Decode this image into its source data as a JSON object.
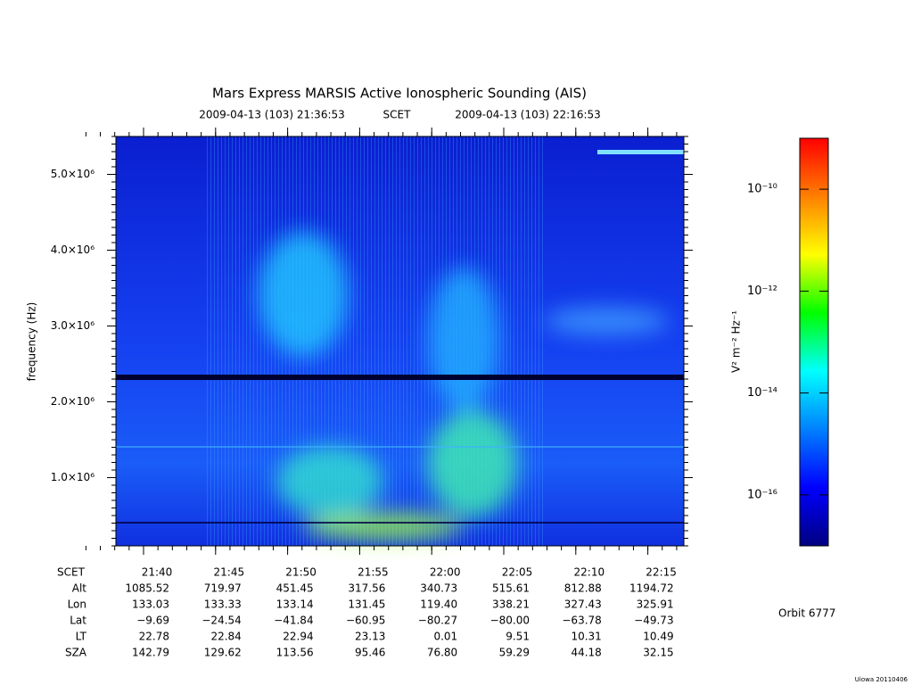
{
  "chart_data": {
    "type": "spectrogram",
    "title": "Mars Express MARSIS Active Ionospheric Sounding (AIS)",
    "subtitle": [
      "2009-04-13 (103) 21:36:53",
      "SCET",
      "2009-04-13 (103) 22:16:53"
    ],
    "ylabel": "frequency (Hz)",
    "ylim": [
      100000,
      5500000
    ],
    "yticks": [
      {
        "value": 1000000,
        "label": "1.0×10⁶"
      },
      {
        "value": 2000000,
        "label": "2.0×10⁶"
      },
      {
        "value": 3000000,
        "label": "3.0×10⁶"
      },
      {
        "value": 4000000,
        "label": "4.0×10⁶"
      },
      {
        "value": 5000000,
        "label": "5.0×10⁶"
      }
    ],
    "row_label": "SCET",
    "categories": [
      "21:40",
      "21:45",
      "21:50",
      "21:55",
      "22:00",
      "22:05",
      "22:10",
      "22:15"
    ],
    "ephemeris": [
      {
        "name": "Alt",
        "values": [
          1085.52,
          719.97,
          451.45,
          317.56,
          340.73,
          515.61,
          812.88,
          1194.72
        ],
        "value_labels": [
          "1085.52",
          "719.97",
          "451.45",
          "317.56",
          "340.73",
          "515.61",
          "812.88",
          "1194.72"
        ]
      },
      {
        "name": "Lon",
        "values": [
          133.03,
          133.33,
          133.14,
          131.45,
          119.4,
          338.21,
          327.43,
          325.91
        ],
        "value_labels": [
          "133.03",
          "133.33",
          "133.14",
          "131.45",
          "119.40",
          "338.21",
          "327.43",
          "325.91"
        ]
      },
      {
        "name": "Lat",
        "values": [
          -9.69,
          -24.54,
          -41.84,
          -60.95,
          -80.27,
          -80.0,
          -63.78,
          -49.73
        ],
        "value_labels": [
          "−9.69",
          "−24.54",
          "−41.84",
          "−60.95",
          "−80.27",
          "−80.00",
          "−63.78",
          "−49.73"
        ]
      },
      {
        "name": "LT",
        "values": [
          22.78,
          22.84,
          22.94,
          23.13,
          0.01,
          9.51,
          10.31,
          10.49
        ],
        "value_labels": [
          "22.78",
          "22.84",
          "22.94",
          "23.13",
          "0.01",
          "9.51",
          "10.31",
          "10.49"
        ]
      },
      {
        "name": "SZA",
        "values": [
          142.79,
          129.62,
          113.56,
          95.46,
          76.8,
          59.29,
          44.18,
          32.15
        ],
        "value_labels": [
          "142.79",
          "129.62",
          "113.56",
          "95.46",
          "76.80",
          "59.29",
          "44.18",
          "32.15"
        ]
      }
    ],
    "colorbar_label": "V² m⁻² Hz⁻¹",
    "zscale": "log",
    "zlim": [
      1e-17,
      1e-09
    ],
    "zticks": [
      {
        "value": 1e-10,
        "label": "10⁻¹⁰"
      },
      {
        "value": 1e-12,
        "label": "10⁻¹²"
      },
      {
        "value": 1e-14,
        "label": "10⁻¹⁴"
      },
      {
        "value": 1e-16,
        "label": "10⁻¹⁶"
      }
    ],
    "colormap": [
      "#000080",
      "#0000ff",
      "#0080ff",
      "#00ffff",
      "#00ff00",
      "#ffff00",
      "#ff8000",
      "#ff0000"
    ],
    "orbit": "Orbit 6777",
    "footer": "Uiowa 20110406"
  }
}
